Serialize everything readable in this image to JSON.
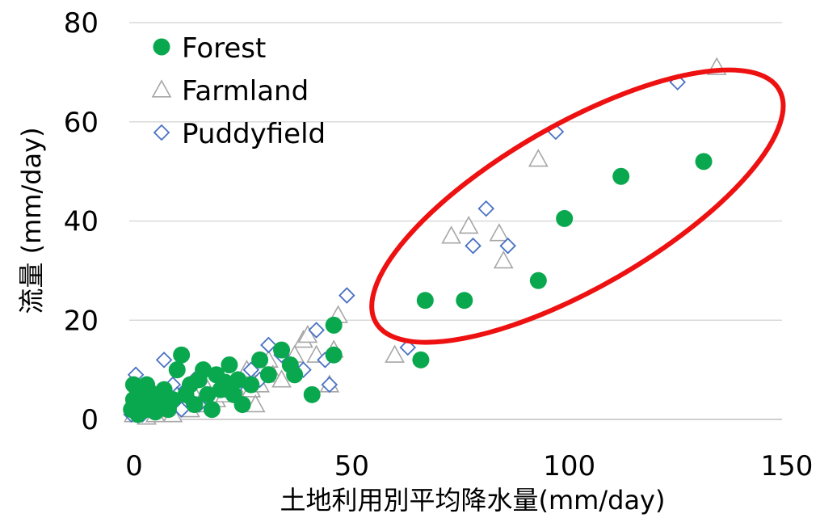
{
  "chart_data": {
    "type": "scatter",
    "xlabel": "土地利用別平均降水量(mm/day)",
    "ylabel": "流量 (mm/day)",
    "xlim": [
      0,
      150
    ],
    "ylim": [
      0,
      80
    ],
    "xticks": [
      0,
      50,
      100,
      150
    ],
    "yticks": [
      0,
      20,
      40,
      60,
      80
    ],
    "grid": "horizontal",
    "legend_position": "top-left",
    "annotation": {
      "shape": "ellipse",
      "color": "#ee1111",
      "center": [
        103,
        43
      ],
      "rx": 50,
      "ry": 31,
      "rotation_deg": -30
    },
    "series": [
      {
        "name": "Forest",
        "marker": "filled-circle",
        "color": "#0aa84e",
        "points": [
          [
            0.5,
            2
          ],
          [
            1,
            4
          ],
          [
            1,
            7
          ],
          [
            2,
            1
          ],
          [
            2,
            3
          ],
          [
            3,
            5
          ],
          [
            4,
            2
          ],
          [
            4,
            7
          ],
          [
            5,
            3
          ],
          [
            6,
            1.5
          ],
          [
            6,
            5
          ],
          [
            7,
            3
          ],
          [
            8,
            6
          ],
          [
            9,
            2
          ],
          [
            10,
            4
          ],
          [
            11,
            10
          ],
          [
            12,
            13
          ],
          [
            13,
            5
          ],
          [
            14,
            7
          ],
          [
            15,
            3
          ],
          [
            16,
            8
          ],
          [
            17,
            10
          ],
          [
            18,
            5
          ],
          [
            19,
            2
          ],
          [
            20,
            9
          ],
          [
            21,
            6
          ],
          [
            22,
            7.5
          ],
          [
            23,
            11
          ],
          [
            24,
            5
          ],
          [
            25,
            8
          ],
          [
            26,
            3
          ],
          [
            28,
            7
          ],
          [
            30,
            12
          ],
          [
            32,
            9
          ],
          [
            35,
            14
          ],
          [
            37,
            11
          ],
          [
            38,
            9
          ],
          [
            42,
            5
          ],
          [
            47,
            13
          ],
          [
            47,
            19
          ],
          [
            67,
            12
          ],
          [
            68,
            24
          ],
          [
            77,
            24
          ],
          [
            94,
            28
          ],
          [
            100,
            40.5
          ],
          [
            113,
            49
          ],
          [
            132,
            52
          ]
        ]
      },
      {
        "name": "Farmland",
        "marker": "open-triangle",
        "color": "#a6a6a6",
        "points": [
          [
            1,
            1
          ],
          [
            2,
            5
          ],
          [
            3,
            2
          ],
          [
            4,
            0.5
          ],
          [
            5,
            3
          ],
          [
            6,
            1
          ],
          [
            7,
            2
          ],
          [
            8,
            4
          ],
          [
            10,
            1
          ],
          [
            12,
            3
          ],
          [
            14,
            2
          ],
          [
            15,
            5
          ],
          [
            16,
            3
          ],
          [
            18,
            6
          ],
          [
            20,
            4
          ],
          [
            22,
            5
          ],
          [
            24,
            7
          ],
          [
            25,
            5
          ],
          [
            26,
            8
          ],
          [
            27,
            10
          ],
          [
            28,
            6
          ],
          [
            29,
            3
          ],
          [
            30,
            7
          ],
          [
            32,
            12
          ],
          [
            33,
            9
          ],
          [
            35,
            8
          ],
          [
            38,
            13
          ],
          [
            40,
            16
          ],
          [
            41,
            17
          ],
          [
            43,
            13
          ],
          [
            46,
            7
          ],
          [
            47,
            14
          ],
          [
            48,
            21
          ],
          [
            61,
            13
          ],
          [
            74,
            37
          ],
          [
            78,
            39
          ],
          [
            85,
            37.5
          ],
          [
            86,
            32
          ],
          [
            94,
            52.5
          ],
          [
            135,
            71
          ]
        ]
      },
      {
        "name": "Puddyfield",
        "marker": "open-diamond",
        "color": "#4a72c4",
        "points": [
          [
            0.5,
            1
          ],
          [
            1,
            3
          ],
          [
            1.5,
            9
          ],
          [
            2,
            2
          ],
          [
            3,
            5
          ],
          [
            3,
            1
          ],
          [
            4,
            3
          ],
          [
            5,
            6
          ],
          [
            6,
            2
          ],
          [
            7,
            4
          ],
          [
            8,
            12
          ],
          [
            9,
            3
          ],
          [
            10,
            7
          ],
          [
            11,
            5
          ],
          [
            12,
            2
          ],
          [
            13,
            6
          ],
          [
            14,
            4
          ],
          [
            15,
            8
          ],
          [
            16,
            3
          ],
          [
            18,
            5
          ],
          [
            20,
            9
          ],
          [
            22,
            6
          ],
          [
            24,
            5
          ],
          [
            25,
            7
          ],
          [
            28,
            10
          ],
          [
            30,
            8
          ],
          [
            32,
            15
          ],
          [
            35,
            13
          ],
          [
            40,
            10
          ],
          [
            43,
            18
          ],
          [
            45,
            12
          ],
          [
            46,
            7
          ],
          [
            50,
            25
          ],
          [
            64,
            14.5
          ],
          [
            79,
            35
          ],
          [
            82,
            42.5
          ],
          [
            87,
            35
          ],
          [
            98,
            58
          ],
          [
            126,
            68
          ]
        ]
      }
    ]
  }
}
